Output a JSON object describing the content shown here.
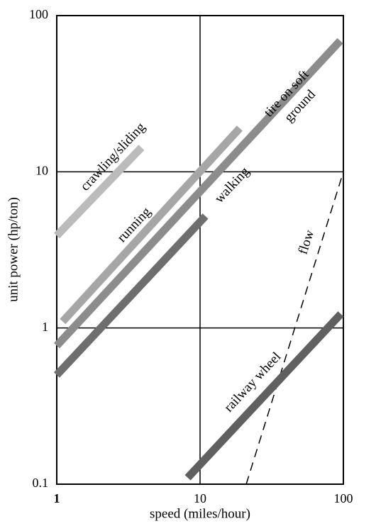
{
  "chart_data": {
    "type": "line",
    "x_label": "speed (miles/hour)",
    "y_label": "unit power (hp/ton)",
    "log_x": true,
    "log_y": true,
    "grid": true,
    "xlim": [
      1,
      100
    ],
    "ylim": [
      0.1,
      100
    ],
    "xticks": [
      1,
      10,
      100
    ],
    "yticks": [
      0.1,
      1,
      10,
      100
    ],
    "series": [
      {
        "name": "crawling/sliding",
        "color": "#bbbbbb",
        "x": [
          1,
          3.9
        ],
        "values": [
          3.9,
          14.3
        ]
      },
      {
        "name": "running",
        "color": "#a6a6a6",
        "x": [
          1.1,
          18.9
        ],
        "values": [
          1.1,
          19
        ]
      },
      {
        "name": "walking",
        "color": "#6e6e6e",
        "x": [
          1,
          10.9
        ],
        "values": [
          0.5,
          5.2
        ]
      },
      {
        "name": "tire on soft ground",
        "color": "#8c8c8c",
        "x": [
          1,
          95
        ],
        "values": [
          0.77,
          69
        ]
      },
      {
        "name": "flow",
        "color": "#000000",
        "dashed": true,
        "x": [
          21,
          100
        ],
        "values": [
          0.1,
          10
        ]
      },
      {
        "name": "railway wheel",
        "color": "#606060",
        "x": [
          8.2,
          96
        ],
        "values": [
          0.11,
          1.23
        ]
      }
    ]
  }
}
